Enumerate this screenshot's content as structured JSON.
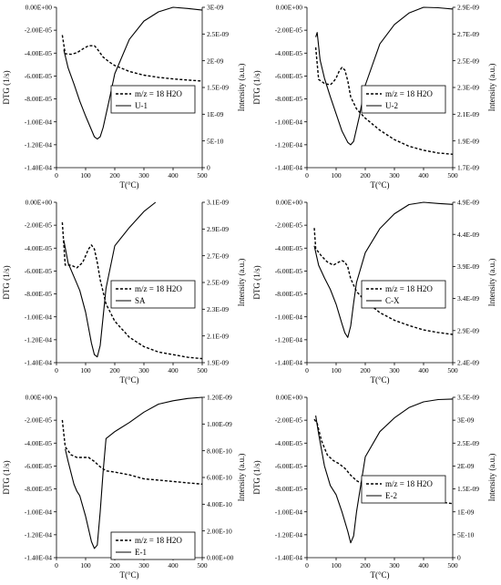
{
  "chart_data": [
    {
      "type": "line",
      "panel_label": "U-1",
      "xlabel": "T(°C)",
      "ylabel_left": "DTG (1/s)",
      "ylabel_right": "Intensity (a.u.)",
      "xlim": [
        0,
        500
      ],
      "ylim_left": [
        -0.00014,
        0
      ],
      "ylim_right": [
        0,
        3e-09
      ],
      "x_ticks": [
        "0",
        "100",
        "200",
        "300",
        "400",
        "500"
      ],
      "y_left_ticks": [
        "0.00E+00",
        "-2.00E-05",
        "-4.00E-05",
        "-6.00E-05",
        "-8.00E-05",
        "-1.00E-04",
        "-1.20E-04",
        "-1.40E-04"
      ],
      "y_right_ticks": [
        "3E-09",
        "2.5E-09",
        "2E-09",
        "1.5E-09",
        "1E-09",
        "5E-10",
        "0"
      ],
      "legend": [
        "m/z = 18 H2O",
        "U-1"
      ],
      "legend_position": "center-right",
      "series": [
        {
          "name": "m/z = 18 H2O",
          "axis": "right",
          "style": "dashed",
          "x": [
            20,
            30,
            50,
            70,
            90,
            110,
            130,
            140,
            160,
            180,
            200,
            250,
            300,
            350,
            400,
            450,
            500
          ],
          "y": [
            2.48e-09,
            2.13e-09,
            2.12e-09,
            2.15e-09,
            2.22e-09,
            2.28e-09,
            2.28e-09,
            2.22e-09,
            2.07e-09,
            1.98e-09,
            1.91e-09,
            1.8e-09,
            1.73e-09,
            1.69e-09,
            1.66e-09,
            1.64e-09,
            1.62e-09
          ]
        },
        {
          "name": "U-1",
          "axis": "left",
          "style": "solid",
          "x": [
            25,
            40,
            60,
            80,
            100,
            120,
            130,
            140,
            150,
            160,
            180,
            200,
            250,
            300,
            350,
            400,
            450,
            500
          ],
          "y": [
            -3.7e-05,
            -5.3e-05,
            -6.7e-05,
            -8.2e-05,
            -9.5e-05,
            -0.000107,
            -0.000113,
            -0.000115,
            -0.000113,
            -0.000105,
            -8.2e-05,
            -5.8e-05,
            -2.8e-05,
            -1.2e-05,
            -4e-06,
            0,
            -1e-06,
            -2.5e-06
          ]
        }
      ]
    },
    {
      "type": "line",
      "panel_label": "U-2",
      "xlabel": "T(°C)",
      "ylabel_left": "DTG (1/s)",
      "ylabel_right": "Intensity (a.u.)",
      "xlim": [
        0,
        500
      ],
      "ylim_left": [
        -0.00014,
        0
      ],
      "ylim_right": [
        1.7e-09,
        2.9e-09
      ],
      "x_ticks": [
        "0",
        "100",
        "200",
        "300",
        "400",
        "500"
      ],
      "y_left_ticks": [
        "0.00E+00",
        "-2.00E-05",
        "-4.00E-05",
        "-6.00E-05",
        "-8.00E-05",
        "-1.00E-04",
        "-1.20E-04",
        "-1.40E-04"
      ],
      "y_right_ticks": [
        "2.9E-09",
        "2.7E-09",
        "2.5E-09",
        "2.3E-09",
        "2.1E-09",
        "1.9E-09",
        "1.7E-09"
      ],
      "legend": [
        "m/z = 18 H2O",
        "U-2"
      ],
      "legend_position": "center-right",
      "series": [
        {
          "name": "m/z = 18 H2O",
          "axis": "right",
          "style": "dashed",
          "x": [
            30,
            40,
            60,
            80,
            90,
            100,
            110,
            120,
            130,
            140,
            150,
            170,
            200,
            250,
            300,
            350,
            400,
            450,
            500
          ],
          "y": [
            2.6e-09,
            2.36e-09,
            2.33e-09,
            2.32e-09,
            2.34e-09,
            2.37e-09,
            2.42e-09,
            2.45e-09,
            2.43e-09,
            2.35e-09,
            2.23e-09,
            2.14e-09,
            2.07e-09,
            1.98e-09,
            1.91e-09,
            1.86e-09,
            1.83e-09,
            1.81e-09,
            1.8e-09
          ]
        },
        {
          "name": "U-2",
          "axis": "left",
          "style": "solid",
          "x": [
            30,
            35,
            45,
            60,
            80,
            100,
            120,
            140,
            150,
            160,
            180,
            200,
            250,
            300,
            350,
            400,
            450,
            500
          ],
          "y": [
            -2.6e-05,
            -2.2e-05,
            -4.6e-05,
            -6.2e-05,
            -7.8e-05,
            -9.3e-05,
            -0.000108,
            -0.000118,
            -0.00012,
            -0.000117,
            -9.5e-05,
            -6.8e-05,
            -3.2e-05,
            -1.5e-05,
            -5e-06,
            0,
            -4e-07,
            -1.5e-06
          ]
        }
      ]
    },
    {
      "type": "line",
      "panel_label": "SA",
      "xlabel": "T(°C)",
      "ylabel_left": "DTG (1/s)",
      "ylabel_right": "Intensity (a.u.)",
      "xlim": [
        0,
        500
      ],
      "ylim_left": [
        -0.00014,
        0
      ],
      "ylim_right": [
        1.9e-09,
        3.1e-09
      ],
      "x_ticks": [
        "0",
        "100",
        "200",
        "300",
        "400",
        "500"
      ],
      "y_left_ticks": [
        "0.00E+00",
        "-2.00E-05",
        "-4.00E-05",
        "-6.00E-05",
        "-8.00E-05",
        "-1.00E-04",
        "-1.20E-04",
        "-1.40E-04"
      ],
      "y_right_ticks": [
        "3.1E-09",
        "2.9E-09",
        "2.7E-09",
        "2.5E-09",
        "2.3E-09",
        "2.1E-09",
        "1.9E-09"
      ],
      "legend": [
        "m/z = 18 H2O",
        "SA"
      ],
      "legend_position": "center-right",
      "series": [
        {
          "name": "m/z = 18 H2O",
          "axis": "right",
          "style": "dashed",
          "x": [
            20,
            30,
            50,
            70,
            90,
            110,
            120,
            130,
            140,
            150,
            170,
            200,
            250,
            300,
            350,
            400,
            450,
            500
          ],
          "y": [
            2.95e-09,
            2.63e-09,
            2.63e-09,
            2.61e-09,
            2.65e-09,
            2.75e-09,
            2.78e-09,
            2.75e-09,
            2.65e-09,
            2.52e-09,
            2.34e-09,
            2.21e-09,
            2.09e-09,
            2.02e-09,
            1.98e-09,
            1.96e-09,
            1.94e-09,
            1.93e-09
          ]
        },
        {
          "name": "SA",
          "axis": "left",
          "style": "solid",
          "x": [
            25,
            40,
            60,
            80,
            100,
            120,
            130,
            140,
            150,
            160,
            170,
            200,
            250,
            300,
            340
          ],
          "y": [
            -3.3e-05,
            -5.3e-05,
            -6.5e-05,
            -7.7e-05,
            -9.6e-05,
            -0.000123,
            -0.000133,
            -0.000135,
            -0.000125,
            -0.0001,
            -7.5e-05,
            -3.8e-05,
            -2.2e-05,
            -8e-06,
            0
          ]
        }
      ]
    },
    {
      "type": "line",
      "panel_label": "C-X",
      "xlabel": "T(°C)",
      "ylabel_left": "DTG (1/s)",
      "ylabel_right": "Intensity (a.u.)",
      "xlim": [
        0,
        500
      ],
      "ylim_left": [
        -0.00014,
        0
      ],
      "ylim_right": [
        2.4e-09,
        4.9e-09
      ],
      "x_ticks": [
        "0",
        "100",
        "200",
        "300",
        "400",
        "500"
      ],
      "y_left_ticks": [
        "0.00E+00",
        "-2.00E-05",
        "-4.00E-05",
        "-6.00E-05",
        "-8.00E-05",
        "-1.00E-04",
        "-1.20E-04",
        "-1.40E-04"
      ],
      "y_right_ticks": [
        "4.9E-09",
        "4.4E-09",
        "3.9E-09",
        "3.4E-09",
        "2.9E-09",
        "2.4E-09"
      ],
      "legend": [
        "m/z = 18 H2O",
        "C-X"
      ],
      "legend_position": "center-right",
      "series": [
        {
          "name": "m/z = 18 H2O",
          "axis": "right",
          "style": "dashed",
          "x": [
            25,
            30,
            50,
            70,
            90,
            110,
            120,
            130,
            140,
            150,
            170,
            200,
            250,
            300,
            350,
            400,
            450,
            500
          ],
          "y": [
            4.5e-09,
            4.18e-09,
            4.06e-09,
            3.97e-09,
            3.92e-09,
            3.97e-09,
            3.99e-09,
            3.97e-09,
            3.89e-09,
            3.71e-09,
            3.51e-09,
            3.36e-09,
            3.18e-09,
            3.06e-09,
            2.98e-09,
            2.91e-09,
            2.87e-09,
            2.84e-09
          ]
        },
        {
          "name": "C-X",
          "axis": "left",
          "style": "solid",
          "x": [
            25,
            40,
            60,
            80,
            100,
            120,
            130,
            140,
            150,
            160,
            170,
            200,
            250,
            300,
            350,
            400,
            450,
            500
          ],
          "y": [
            -3.8e-05,
            -5.5e-05,
            -6.6e-05,
            -7.6e-05,
            -8.9e-05,
            -0.000106,
            -0.000114,
            -0.000118,
            -0.000108,
            -8.8e-05,
            -7e-05,
            -4.4e-05,
            -2.3e-05,
            -1e-05,
            -2e-06,
            0,
            -1e-06,
            -1.8e-06
          ]
        }
      ]
    },
    {
      "type": "line",
      "panel_label": "E-1",
      "xlabel": "T(°C)",
      "ylabel_left": "DTG (1/s)",
      "ylabel_right": "Intensity (a.u.)",
      "xlim": [
        0,
        500
      ],
      "ylim_left": [
        -0.00014,
        0
      ],
      "ylim_right": [
        0,
        1.2e-09
      ],
      "x_ticks": [
        "0",
        "100",
        "200",
        "300",
        "400",
        "500"
      ],
      "y_left_ticks": [
        "0.00E+00",
        "-2.00E-05",
        "-4.00E-05",
        "-6.00E-05",
        "-8.00E-05",
        "-1.00E-04",
        "-1.20E-04",
        "-1.40E-04"
      ],
      "y_right_ticks": [
        "1.20E-09",
        "1.00E-09",
        "8.00E-10",
        "6.00E-10",
        "4.00E-10",
        "2.00E-10",
        "0.00E+00"
      ],
      "legend": [
        "m/z = 18 H2O",
        "E-1"
      ],
      "legend_position": "bottom-right",
      "series": [
        {
          "name": "m/z = 18 H2O",
          "axis": "right",
          "style": "dashed",
          "x": [
            20,
            30,
            50,
            70,
            90,
            110,
            130,
            150,
            170,
            200,
            250,
            300,
            350,
            400,
            450,
            500
          ],
          "y": [
            1.03e-09,
            8.3e-10,
            7.7e-10,
            7.5e-10,
            7.5e-10,
            7.5e-10,
            7.2e-10,
            6.8e-10,
            6.5e-10,
            6.4e-10,
            6.2e-10,
            5.9e-10,
            5.8e-10,
            5.7e-10,
            5.6e-10,
            5.5e-10
          ]
        },
        {
          "name": "E-1",
          "axis": "left",
          "style": "solid",
          "x": [
            30,
            40,
            60,
            70,
            80,
            100,
            120,
            130,
            140,
            150,
            160,
            170,
            200,
            250,
            300,
            350,
            400,
            450,
            500
          ],
          "y": [
            -4.5e-05,
            -5.6e-05,
            -7.6e-05,
            -8.2e-05,
            -8.6e-05,
            -0.000104,
            -0.000126,
            -0.000132,
            -0.000129,
            -0.0001,
            -6.5e-05,
            -3.6e-05,
            -3e-05,
            -2.2e-05,
            -1.3e-05,
            -6e-06,
            -3e-06,
            -1e-06,
            0
          ]
        }
      ]
    },
    {
      "type": "line",
      "panel_label": "E-2",
      "xlabel": "T(°C)",
      "ylabel_left": "DTG (1/s)",
      "ylabel_right": "Intensity (a.u.)",
      "xlim": [
        0,
        500
      ],
      "ylim_left": [
        -0.00014,
        0
      ],
      "ylim_right": [
        0,
        3.5e-09
      ],
      "x_ticks": [
        "0",
        "100",
        "200",
        "300",
        "400",
        "500"
      ],
      "y_left_ticks": [
        "0.00E+00",
        "-2.00E-05",
        "-4.00E-05",
        "-6.00E-05",
        "-8.00E-05",
        "-1.00E-04",
        "-1.20E-04",
        "-1.40E-04"
      ],
      "y_right_ticks": [
        "3.5E-09",
        "3E-09",
        "2.5E-09",
        "2E-09",
        "1.5E-09",
        "1E-09",
        "5E-10",
        "0"
      ],
      "legend": [
        "m/z = 18 H2O",
        "E-2"
      ],
      "legend_position": "center-right",
      "series": [
        {
          "name": "m/z = 18 H2O",
          "axis": "right",
          "style": "dashed",
          "x": [
            25,
            35,
            50,
            70,
            90,
            110,
            130,
            150,
            170,
            200,
            250,
            300,
            350,
            400,
            450,
            500
          ],
          "y": [
            3.02e-09,
            2.93e-09,
            2.55e-09,
            2.24e-09,
            2.12e-09,
            2.05e-09,
            1.95e-09,
            1.8e-09,
            1.68e-09,
            1.58e-09,
            1.48e-09,
            1.4e-09,
            1.33e-09,
            1.27e-09,
            1.22e-09,
            1.18e-09
          ]
        },
        {
          "name": "E-2",
          "axis": "left",
          "style": "solid",
          "x": [
            30,
            40,
            60,
            80,
            100,
            120,
            140,
            150,
            160,
            170,
            200,
            250,
            300,
            350,
            400,
            450,
            500
          ],
          "y": [
            -1.6e-05,
            -3.2e-05,
            -6e-05,
            -7.7e-05,
            -8.5e-05,
            -0.0001,
            -0.000117,
            -0.000127,
            -0.000121,
            -0.0001,
            -5.2e-05,
            -3e-05,
            -1.8e-05,
            -9e-06,
            -4e-06,
            -2e-06,
            -1.5e-06
          ]
        }
      ]
    }
  ]
}
